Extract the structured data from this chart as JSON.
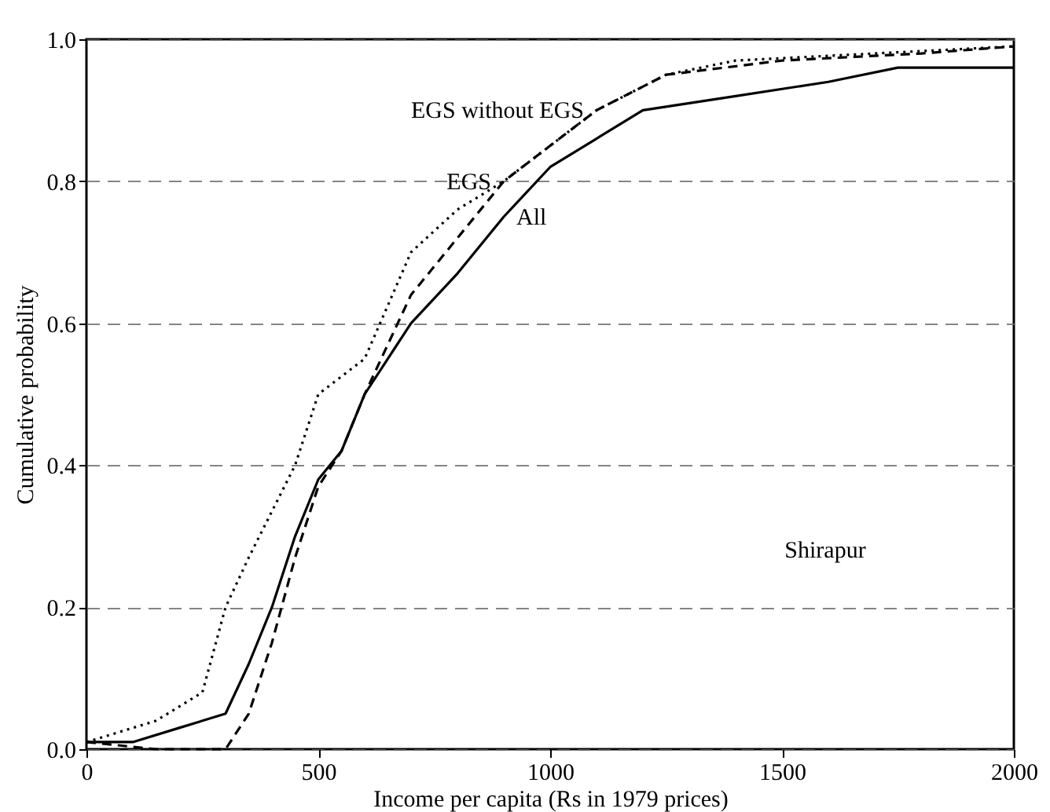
{
  "chart_data": {
    "type": "line",
    "xlabel": "Income per capita (Rs in 1979 prices)",
    "ylabel": "Cumulative probability",
    "xlim": [
      0,
      2000
    ],
    "xticks": [
      0,
      500,
      1000,
      1500,
      2000
    ],
    "ylim": [
      0,
      1
    ],
    "yticks": [
      {
        "value": 0,
        "label": "0.0"
      },
      {
        "value": 0.2,
        "label": "0.2"
      },
      {
        "value": 0.4,
        "label": "0.4"
      },
      {
        "value": 0.6,
        "label": "0.6"
      },
      {
        "value": 0.8,
        "label": "0.8"
      },
      {
        "value": 1,
        "label": "1.0"
      }
    ],
    "grid": "y",
    "series": [
      {
        "name": "All",
        "color": "#000000",
        "line_style": "solid",
        "x": [
          0,
          100,
          200,
          300,
          350,
          400,
          450,
          500,
          550,
          600,
          700,
          800,
          900,
          1000,
          1100,
          1200,
          1400,
          1600,
          1750,
          2000
        ],
        "values": [
          0.01,
          0.01,
          0.03,
          0.05,
          0.12,
          0.2,
          0.3,
          0.38,
          0.42,
          0.5,
          0.6,
          0.67,
          0.75,
          0.82,
          0.86,
          0.9,
          0.92,
          0.94,
          0.96,
          0.96
        ]
      },
      {
        "name": "EGS",
        "color": "#000000",
        "line_style": "dashed",
        "x": [
          0,
          150,
          300,
          350,
          400,
          450,
          500,
          550,
          600,
          700,
          800,
          900,
          1000,
          1100,
          1250,
          1500,
          1800,
          2000
        ],
        "values": [
          0.01,
          0.0,
          0.0,
          0.05,
          0.15,
          0.27,
          0.37,
          0.42,
          0.5,
          0.64,
          0.72,
          0.8,
          0.85,
          0.9,
          0.95,
          0.97,
          0.98,
          0.99
        ]
      },
      {
        "name": "EGS without EGS",
        "color": "#000000",
        "line_style": "dotted",
        "x": [
          0,
          150,
          250,
          300,
          350,
          450,
          500,
          600,
          700,
          800,
          900,
          1000,
          1100,
          1250,
          1400,
          1700,
          2000
        ],
        "values": [
          0.01,
          0.04,
          0.08,
          0.2,
          0.27,
          0.4,
          0.5,
          0.55,
          0.7,
          0.76,
          0.8,
          0.85,
          0.9,
          0.95,
          0.97,
          0.98,
          0.99
        ]
      }
    ],
    "annotations": [
      "Shirapur"
    ]
  }
}
